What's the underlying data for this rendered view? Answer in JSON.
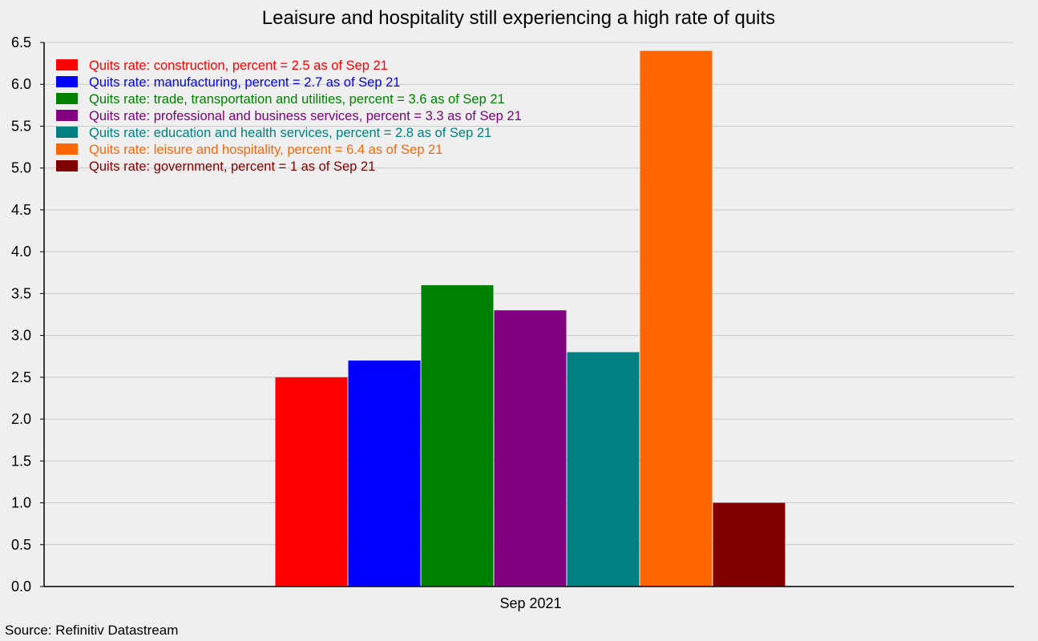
{
  "chart_data": {
    "type": "bar",
    "title": "Leaisure and hospitality still experiencing a high rate of quits",
    "categories": [
      "Sep 2021"
    ],
    "ylim": [
      0,
      6.5
    ],
    "yticks": [
      "0.0",
      "0.5",
      "1.0",
      "1.5",
      "2.0",
      "2.5",
      "3.0",
      "3.5",
      "4.0",
      "4.5",
      "5.0",
      "5.5",
      "6.0",
      "6.5"
    ],
    "grid": true,
    "legend_position": "top-left",
    "series": [
      {
        "name": "Quits rate: construction, percent = 2.5 as of Sep 21",
        "values": [
          2.5
        ],
        "color": "#ff0000"
      },
      {
        "name": "Quits rate: manufacturing, percent = 2.7 as of Sep 21",
        "values": [
          2.7
        ],
        "color": "#0000ff"
      },
      {
        "name": "Quits rate: trade, transportation and utilities, percent = 3.6 as of Sep 21",
        "values": [
          3.6
        ],
        "color": "#008000"
      },
      {
        "name": "Quits rate: professional and business services, percent = 3.3 as of Sep 21",
        "values": [
          3.3
        ],
        "color": "#800080"
      },
      {
        "name": "Quits rate: education and health services, percent = 2.8 as of Sep 21",
        "values": [
          2.8
        ],
        "color": "#008080"
      },
      {
        "name": "Quits rate: leisure and hospitality, percent = 6.4 as of Sep 21",
        "values": [
          6.4
        ],
        "color": "#ff6600"
      },
      {
        "name": "Quits rate: government, percent = 1 as of Sep 21",
        "values": [
          1.0
        ],
        "color": "#800000"
      }
    ]
  },
  "source": "Source: Refinitiv Datastream"
}
